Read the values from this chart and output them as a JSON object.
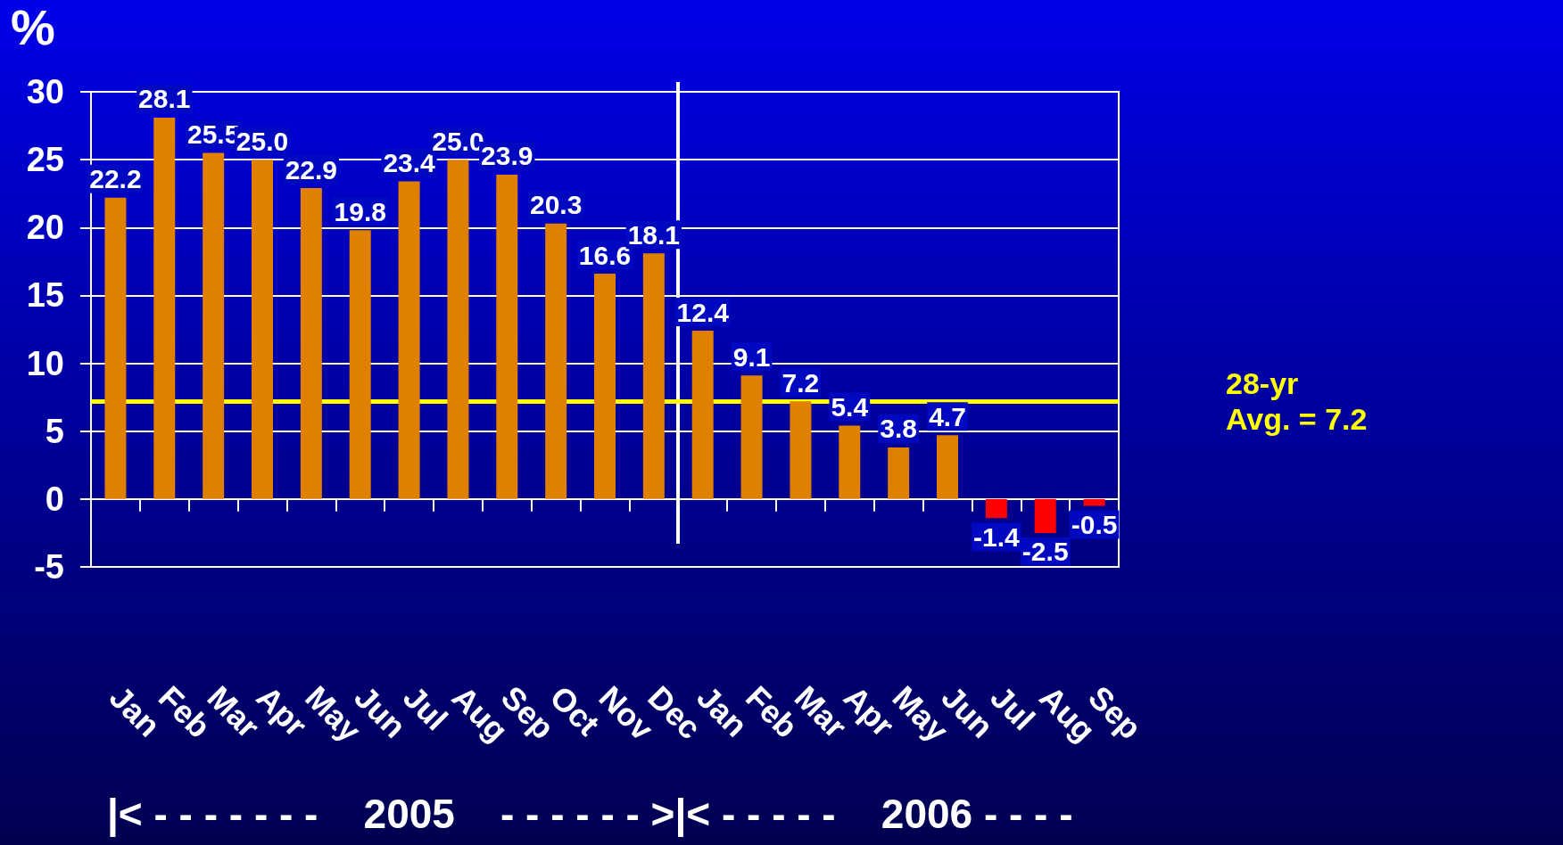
{
  "chart_data": {
    "type": "bar",
    "ylabel": "%",
    "categories": [
      "Jan",
      "Feb",
      "Mar",
      "Apr",
      "May",
      "Jun",
      "Jul",
      "Aug",
      "Sep",
      "Oct",
      "Nov",
      "Dec",
      "Jan",
      "Feb",
      "Mar",
      "Apr",
      "May",
      "Jun",
      "Jul",
      "Aug",
      "Sep"
    ],
    "values": [
      22.2,
      28.1,
      25.5,
      25.0,
      22.9,
      19.8,
      23.4,
      25.0,
      23.9,
      20.3,
      16.6,
      18.1,
      12.4,
      9.1,
      7.2,
      5.4,
      3.8,
      4.7,
      -1.4,
      -2.5,
      -0.5
    ],
    "value_labels": [
      "22.2",
      "28.1",
      "25.5",
      "25.0",
      "22.9",
      "19.8",
      "23.4",
      "25.0",
      "23.9",
      "20.3",
      "16.6",
      "18.1",
      "12.4",
      "9.1",
      "7.2",
      "5.4",
      "3.8",
      "4.7",
      "-1.4",
      "-2.5",
      "-0.5"
    ],
    "colors": [
      "#e08000",
      "#e08000",
      "#e08000",
      "#e08000",
      "#e08000",
      "#e08000",
      "#e08000",
      "#e08000",
      "#e08000",
      "#e08000",
      "#e08000",
      "#e08000",
      "#e08000",
      "#e08000",
      "#e08000",
      "#e08000",
      "#e08000",
      "#e08000",
      "#ff0000",
      "#ff0000",
      "#ff0000"
    ],
    "ylim": [
      -5,
      30
    ],
    "yticks": [
      -5,
      0,
      5,
      10,
      15,
      20,
      25,
      30
    ],
    "grid": "y",
    "ref_lines": [
      {
        "axis": "y",
        "value": 7.2,
        "label": "28-yr\nAvg. = 7.2",
        "color": "#ffff00"
      }
    ],
    "annotations": [
      "|< - - - - - - -    2005    - - - - - - >|< - - - - -    2006 - - - -"
    ]
  }
}
